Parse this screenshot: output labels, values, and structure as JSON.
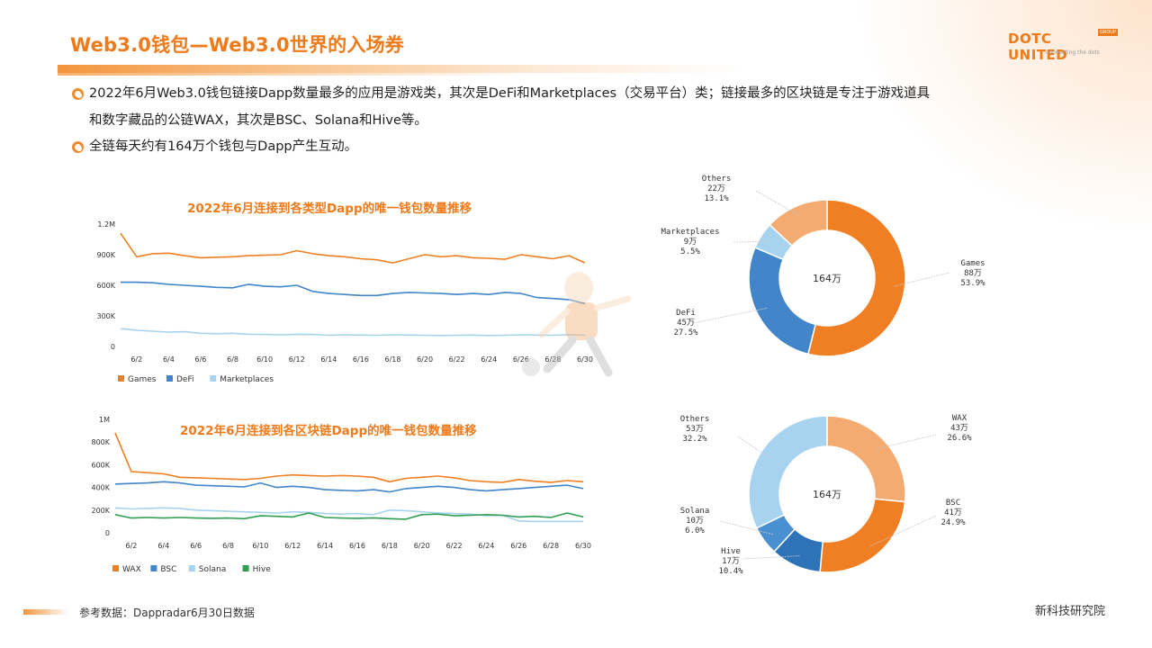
{
  "header": {
    "title": "Web3.0钱包—Web3.0世界的入场券",
    "logo": {
      "main": "DOTC UNITED",
      "tag": "GROUP",
      "sub": "connecting the dots"
    }
  },
  "bullets": [
    {
      "line1": "2022年6月Web3.0钱包链接Dapp数量最多的应用是游戏类，其次是DeFi和Marketplaces（交易平台）类；链接最多的区块链是专注于游戏道具",
      "line2": "和数字藏品的公链WAX，其次是BSC、Solana和Hive等。"
    },
    {
      "line1": "全链每天约有164万个钱包与Dapp产生互动。"
    }
  ],
  "footer": {
    "source": "参考数据：Dappradar6月30日数据",
    "org": "新科技研究院"
  },
  "colors": {
    "accent": "#ef7a1a",
    "games": "#ef7f22",
    "defi": "#4285c8",
    "marketplaces": "#a8d3ef",
    "others": "#f4ab72",
    "wax": "#f4ab72",
    "bsc": "#ef7f22",
    "solana": "#a8d3ef",
    "hive": "#2f9e52",
    "hive_pie": "#2e73b8",
    "solana_pie": "#4a8fcf"
  },
  "chart_data": [
    {
      "type": "line",
      "title": "2022年6月连接到各类型Dapp的唯一钱包数量推移",
      "x": [
        "6/1",
        "6/2",
        "6/3",
        "6/4",
        "6/5",
        "6/6",
        "6/7",
        "6/8",
        "6/9",
        "6/10",
        "6/11",
        "6/12",
        "6/13",
        "6/14",
        "6/15",
        "6/16",
        "6/17",
        "6/18",
        "6/19",
        "6/20",
        "6/21",
        "6/22",
        "6/23",
        "6/24",
        "6/25",
        "6/26",
        "6/27",
        "6/28",
        "6/29",
        "6/30"
      ],
      "xticks": [
        "6/2",
        "6/4",
        "6/6",
        "6/8",
        "6/10",
        "6/12",
        "6/14",
        "6/16",
        "6/18",
        "6/20",
        "6/22",
        "6/24",
        "6/26",
        "6/28",
        "6/30"
      ],
      "yticks": [
        "0",
        "300K",
        "600K",
        "900K",
        "1.2M"
      ],
      "ylim": [
        0,
        1200000
      ],
      "legend_position": "bottom-left",
      "series": [
        {
          "name": "Games",
          "color": "#ef7f22",
          "values": [
            1110000,
            880000,
            910000,
            915000,
            890000,
            870000,
            875000,
            880000,
            890000,
            895000,
            900000,
            940000,
            910000,
            890000,
            880000,
            860000,
            850000,
            820000,
            860000,
            900000,
            880000,
            890000,
            870000,
            865000,
            855000,
            900000,
            880000,
            860000,
            890000,
            820000
          ]
        },
        {
          "name": "DeFi",
          "color": "#4285c8",
          "values": [
            630000,
            630000,
            625000,
            610000,
            600000,
            590000,
            580000,
            575000,
            610000,
            590000,
            585000,
            600000,
            540000,
            520000,
            510000,
            500000,
            500000,
            520000,
            530000,
            525000,
            520000,
            510000,
            520000,
            510000,
            530000,
            520000,
            480000,
            470000,
            460000,
            420000
          ]
        },
        {
          "name": "Marketplaces",
          "color": "#a8d3ef",
          "values": [
            175000,
            160000,
            150000,
            140000,
            145000,
            130000,
            125000,
            130000,
            120000,
            118000,
            115000,
            120000,
            118000,
            110000,
            115000,
            112000,
            110000,
            115000,
            112000,
            110000,
            108000,
            110000,
            112000,
            108000,
            110000,
            115000,
            112000,
            110000,
            115000,
            110000
          ]
        }
      ]
    },
    {
      "type": "line",
      "title": "2022年6月连接到各区块链Dapp的唯一钱包数量推移",
      "x": [
        "6/1",
        "6/2",
        "6/3",
        "6/4",
        "6/5",
        "6/6",
        "6/7",
        "6/8",
        "6/9",
        "6/10",
        "6/11",
        "6/12",
        "6/13",
        "6/14",
        "6/15",
        "6/16",
        "6/17",
        "6/18",
        "6/19",
        "6/20",
        "6/21",
        "6/22",
        "6/23",
        "6/24",
        "6/25",
        "6/26",
        "6/27",
        "6/28",
        "6/29",
        "6/30"
      ],
      "xticks": [
        "6/2",
        "6/4",
        "6/6",
        "6/8",
        "6/10",
        "6/12",
        "6/14",
        "6/16",
        "6/18",
        "6/20",
        "6/22",
        "6/24",
        "6/26",
        "6/28",
        "6/30"
      ],
      "yticks": [
        "0",
        "200K",
        "400K",
        "600K",
        "800K",
        "1M"
      ],
      "ylim": [
        0,
        1000000
      ],
      "legend_position": "bottom-left",
      "series": [
        {
          "name": "WAX",
          "color": "#ef7f22",
          "values": [
            880000,
            540000,
            530000,
            520000,
            490000,
            485000,
            480000,
            475000,
            470000,
            480000,
            500000,
            510000,
            505000,
            500000,
            505000,
            500000,
            490000,
            450000,
            480000,
            490000,
            500000,
            485000,
            460000,
            450000,
            445000,
            470000,
            455000,
            445000,
            460000,
            450000
          ]
        },
        {
          "name": "BSC",
          "color": "#4285c8",
          "values": [
            430000,
            435000,
            440000,
            450000,
            440000,
            420000,
            415000,
            410000,
            405000,
            440000,
            400000,
            410000,
            400000,
            380000,
            375000,
            370000,
            380000,
            360000,
            390000,
            400000,
            410000,
            400000,
            380000,
            370000,
            380000,
            390000,
            400000,
            410000,
            420000,
            390000
          ]
        },
        {
          "name": "Solana",
          "color": "#a8d3ef",
          "values": [
            220000,
            210000,
            215000,
            220000,
            215000,
            200000,
            195000,
            190000,
            185000,
            180000,
            175000,
            185000,
            180000,
            170000,
            165000,
            170000,
            160000,
            200000,
            195000,
            185000,
            175000,
            170000,
            165000,
            150000,
            155000,
            105000,
            100000,
            100000,
            100000,
            100000
          ]
        },
        {
          "name": "Hive",
          "color": "#2f9e52",
          "values": [
            160000,
            130000,
            135000,
            130000,
            135000,
            130000,
            128000,
            130000,
            125000,
            150000,
            145000,
            140000,
            175000,
            135000,
            130000,
            128000,
            132000,
            125000,
            120000,
            160000,
            165000,
            150000,
            155000,
            160000,
            155000,
            140000,
            145000,
            135000,
            175000,
            140000
          ]
        }
      ]
    },
    {
      "type": "pie",
      "center_label": "164万",
      "slices": [
        {
          "name": "Games",
          "amount": "88万",
          "pct": 53.9,
          "pct_label": "53.9%",
          "color": "#ef7f22"
        },
        {
          "name": "DeFi",
          "amount": "45万",
          "pct": 27.5,
          "pct_label": "27.5%",
          "color": "#4285c8"
        },
        {
          "name": "Marketplaces",
          "amount": "9万",
          "pct": 5.5,
          "pct_label": "5.5%",
          "color": "#a8d3ef"
        },
        {
          "name": "Others",
          "amount": "22万",
          "pct": 13.1,
          "pct_label": "13.1%",
          "color": "#f4ab72"
        }
      ]
    },
    {
      "type": "pie",
      "center_label": "164万",
      "slices": [
        {
          "name": "WAX",
          "amount": "43万",
          "pct": 26.6,
          "pct_label": "26.6%",
          "color": "#f4ab72"
        },
        {
          "name": "BSC",
          "amount": "41万",
          "pct": 24.9,
          "pct_label": "24.9%",
          "color": "#ef7f22"
        },
        {
          "name": "Hive",
          "amount": "17万",
          "pct": 10.4,
          "pct_label": "10.4%",
          "color": "#2e73b8"
        },
        {
          "name": "Solana",
          "amount": "10万",
          "pct": 6.0,
          "pct_label": "6.0%",
          "color": "#4a8fcf"
        },
        {
          "name": "Others",
          "amount": "53万",
          "pct": 32.2,
          "pct_label": "32.2%",
          "color": "#a8d3ef"
        }
      ]
    }
  ]
}
